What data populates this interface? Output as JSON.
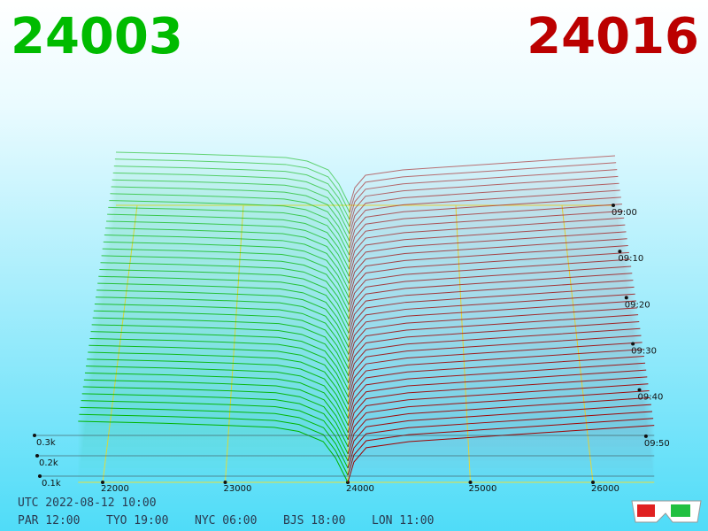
{
  "header": {
    "bid_price": 24003,
    "ask_price": 24016
  },
  "chart_data": {
    "type": "depth3d",
    "xlim": [
      21800,
      26500
    ],
    "xticks": [
      22000,
      23000,
      24000,
      25000,
      26000
    ],
    "zticks": [
      {
        "value": 0.1,
        "label": "0.1k"
      },
      {
        "value": 0.2,
        "label": "0.2k"
      },
      {
        "value": 0.3,
        "label": "0.3k"
      }
    ],
    "time_ticks": [
      "09:00",
      "09:10",
      "09:20",
      "09:30",
      "09:40",
      "09:50"
    ],
    "bids": {
      "color": "#00b400",
      "x": [
        21800,
        22500,
        23000,
        23400,
        23600,
        23800,
        23900,
        24000
      ],
      "values": [
        0.3,
        0.29,
        0.28,
        0.27,
        0.25,
        0.2,
        0.12,
        0
      ]
    },
    "asks": {
      "color": "#a00000",
      "x": [
        24000,
        24050,
        24150,
        24500,
        25000,
        25500,
        26000,
        26500
      ],
      "values": [
        0,
        0.1,
        0.17,
        0.2,
        0.22,
        0.24,
        0.26,
        0.28
      ]
    }
  },
  "footer": {
    "utc": "UTC 2022-08-12 10:00",
    "cities": [
      "PAR 12:00",
      "TYO 19:00",
      "NYC 06:00",
      "BJS 18:00",
      "LON 11:00"
    ]
  }
}
